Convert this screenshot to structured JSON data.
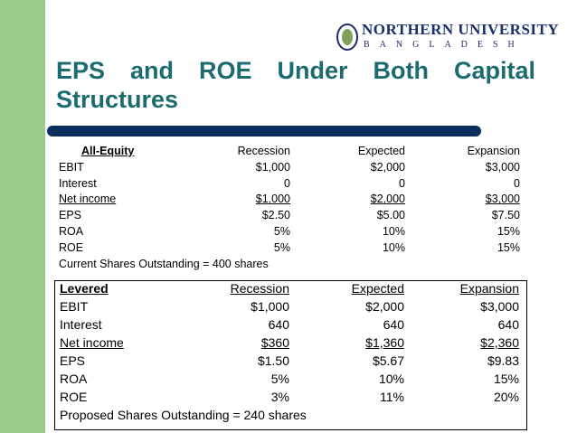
{
  "header": {
    "title": "EPS and ROE Under Both Capital Structures",
    "logo": {
      "name": "NORTHERN UNIVERSITY",
      "country": "BANGLADESH"
    }
  },
  "tables": [
    {
      "header": [
        "All-Equity",
        "Recession",
        "Expected",
        "Expansion"
      ],
      "rows": [
        [
          "EBIT",
          "$1,000",
          "$2,000",
          "$3,000"
        ],
        [
          "Interest",
          "0",
          "0",
          "0"
        ],
        [
          "Net income",
          "$1,000",
          "$2,000",
          "$3,000"
        ],
        [
          "EPS",
          "$2.50",
          "$5.00",
          "$7.50"
        ],
        [
          "ROA",
          "5%",
          "10%",
          "15%"
        ],
        [
          "ROE",
          "5%",
          "10%",
          "15%"
        ]
      ],
      "footer": "Current Shares Outstanding = 400 shares"
    },
    {
      "header": [
        "Levered",
        "Recession",
        "Expected",
        "Expansion"
      ],
      "rows": [
        [
          "EBIT",
          "$1,000",
          "$2,000",
          "$3,000"
        ],
        [
          "Interest",
          "640",
          "640",
          "640"
        ],
        [
          "Net income",
          "$360",
          "$1,360",
          "$2,360"
        ],
        [
          "EPS",
          "$1.50",
          "$5.67",
          "$9.83"
        ],
        [
          "ROA",
          "5%",
          "10%",
          "15%"
        ],
        [
          "ROE",
          "3%",
          "11%",
          "20%"
        ]
      ],
      "footer": "Proposed Shares Outstanding = 240 shares"
    }
  ]
}
